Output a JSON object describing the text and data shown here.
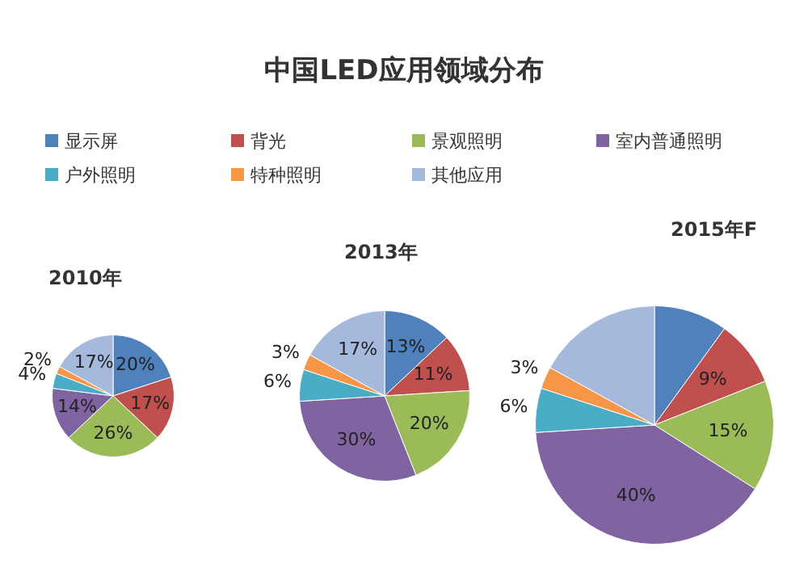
{
  "chart_data": [
    {
      "type": "other",
      "title": "中国LED应用领域分布"
    },
    {
      "type": "pie",
      "title": "2010年",
      "legend": "top",
      "categories": [
        "显示屏",
        "背光",
        "景观照明",
        "室内普通照明",
        "户外照明",
        "特种照明",
        "其他应用"
      ],
      "colors": [
        "#4f81bd",
        "#c0504d",
        "#9bbb59",
        "#8064a2",
        "#4bacc6",
        "#f79646",
        "#a5b9dc"
      ],
      "values": [
        20,
        17,
        26,
        14,
        4,
        2,
        17
      ],
      "value_labels": [
        "20%",
        "17%",
        "26%",
        "14%",
        "4%",
        "2%",
        "17%"
      ]
    },
    {
      "type": "pie",
      "title": "2013年",
      "categories": [
        null,
        null,
        null,
        null,
        null,
        null,
        null
      ],
      "colors": [
        "#4f81bd",
        "#c0504d",
        "#9bbb59",
        "#8064a2",
        "#4bacc6",
        "#f79646",
        "#a5b9dc"
      ],
      "values": [
        13,
        11,
        20,
        30,
        6,
        3,
        17
      ],
      "value_labels": [
        "13%",
        "11%",
        "20%",
        "30%",
        "6%",
        "3%",
        "17%"
      ]
    },
    {
      "type": "pie",
      "title": "2015年F",
      "categories": [
        null,
        null,
        null,
        null,
        null,
        null,
        null
      ],
      "colors": [
        "#4f81bd",
        "#c0504d",
        "#9bbb59",
        "#8064a2",
        "#4bacc6",
        "#f79646",
        "#a5b9dc"
      ],
      "values": [
        10,
        9,
        15,
        40,
        6,
        3,
        17
      ],
      "value_labels": [
        null,
        "9%",
        "15%",
        "40%",
        "6%",
        "3%",
        null
      ]
    }
  ]
}
